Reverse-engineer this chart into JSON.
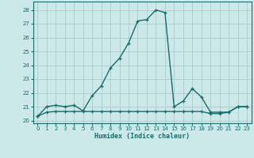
{
  "xlabel": "Humidex (Indice chaleur)",
  "ylabel": "",
  "bg_color": "#cce8e8",
  "grid_color": "#aacccc",
  "line_color": "#1a6b6b",
  "line1_x": [
    0,
    1,
    2,
    3,
    4,
    5,
    6,
    7,
    8,
    9,
    10,
    11,
    12,
    13,
    14,
    15,
    16,
    17,
    18,
    19,
    20,
    21,
    22,
    23
  ],
  "line1_y": [
    20.3,
    21.0,
    21.1,
    21.0,
    21.1,
    20.7,
    21.8,
    22.5,
    23.8,
    24.5,
    25.6,
    27.2,
    27.3,
    28.0,
    27.8,
    21.0,
    21.4,
    22.3,
    21.7,
    20.6,
    20.6,
    20.6,
    21.0,
    21.0
  ],
  "line2_x": [
    0,
    1,
    2,
    3,
    4,
    5,
    6,
    7,
    8,
    9,
    10,
    11,
    12,
    13,
    14,
    15,
    16,
    17,
    18,
    19,
    20,
    21,
    22,
    23
  ],
  "line2_y": [
    20.3,
    20.6,
    20.65,
    20.65,
    20.65,
    20.65,
    20.65,
    20.65,
    20.65,
    20.65,
    20.65,
    20.65,
    20.65,
    20.65,
    20.65,
    20.65,
    20.65,
    20.65,
    20.65,
    20.5,
    20.5,
    20.6,
    21.0,
    21.0
  ],
  "xlim": [
    -0.5,
    23.5
  ],
  "ylim": [
    19.8,
    28.6
  ],
  "yticks": [
    20,
    21,
    22,
    23,
    24,
    25,
    26,
    27,
    28
  ],
  "xticks": [
    0,
    1,
    2,
    3,
    4,
    5,
    6,
    7,
    8,
    9,
    10,
    11,
    12,
    13,
    14,
    15,
    16,
    17,
    18,
    19,
    20,
    21,
    22,
    23
  ],
  "marker": "+",
  "markersize": 3.5,
  "linewidth": 1.0
}
